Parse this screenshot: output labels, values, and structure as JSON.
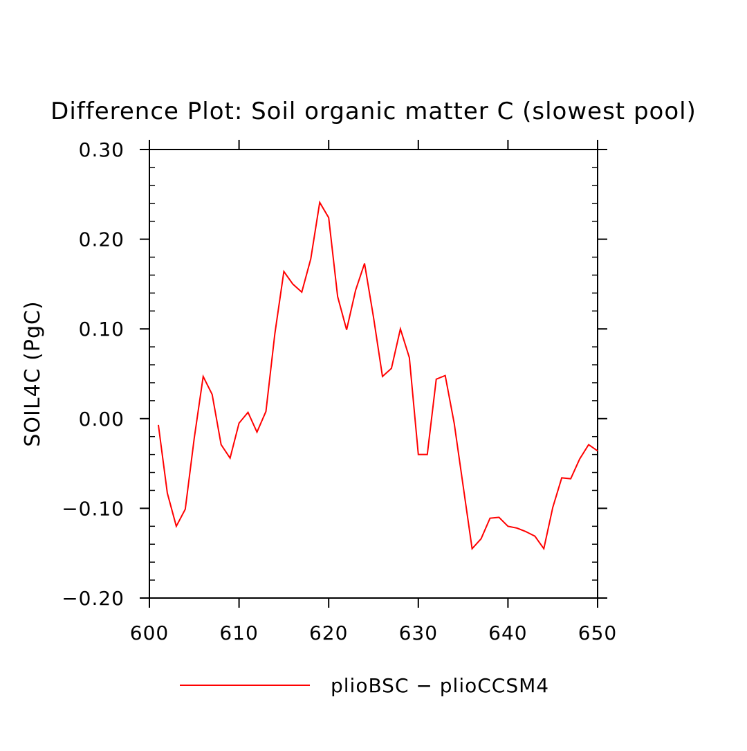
{
  "chart_data": {
    "type": "line",
    "title": "Difference Plot: Soil organic matter C (slowest pool)",
    "xlabel": "",
    "ylabel": "SOIL4C (PgC)",
    "xlim": [
      600,
      650
    ],
    "ylim": [
      -0.2,
      0.3
    ],
    "x_ticks": [
      600,
      610,
      620,
      630,
      640,
      650
    ],
    "x_tick_labels": [
      "600",
      "610",
      "620",
      "630",
      "640",
      "650"
    ],
    "y_ticks": [
      -0.2,
      -0.1,
      0.0,
      0.1,
      0.2,
      0.3
    ],
    "y_tick_labels": [
      "−0.20",
      "−0.10",
      "0.00",
      "0.10",
      "0.20",
      "0.30"
    ],
    "x_minor_step": 0,
    "y_minor_step": 0.02,
    "grid": false,
    "legend_position": "bottom",
    "series": [
      {
        "name": "plioBSC − plioCCSM4",
        "color": "#ff0000",
        "x": [
          601,
          602,
          603,
          604,
          605,
          606,
          607,
          608,
          609,
          610,
          611,
          612,
          613,
          614,
          615,
          616,
          617,
          618,
          619,
          620,
          621,
          622,
          623,
          624,
          625,
          626,
          627,
          628,
          629,
          630,
          631,
          632,
          633,
          634,
          635,
          636,
          637,
          638,
          639,
          640,
          641,
          642,
          643,
          644,
          645,
          646,
          647,
          648,
          649,
          650
        ],
        "y": [
          -0.007,
          -0.083,
          -0.12,
          -0.101,
          -0.022,
          0.047,
          0.027,
          -0.029,
          -0.044,
          -0.005,
          0.007,
          -0.015,
          0.008,
          0.095,
          0.164,
          0.15,
          0.141,
          0.178,
          0.241,
          0.224,
          0.136,
          0.099,
          0.143,
          0.173,
          0.113,
          0.047,
          0.056,
          0.1,
          0.068,
          -0.04,
          -0.04,
          0.044,
          0.048,
          -0.005,
          -0.075,
          -0.145,
          -0.134,
          -0.111,
          -0.11,
          -0.12,
          -0.122,
          -0.126,
          -0.131,
          -0.145,
          -0.099,
          -0.066,
          -0.067,
          -0.045,
          -0.029,
          -0.036
        ]
      }
    ]
  }
}
